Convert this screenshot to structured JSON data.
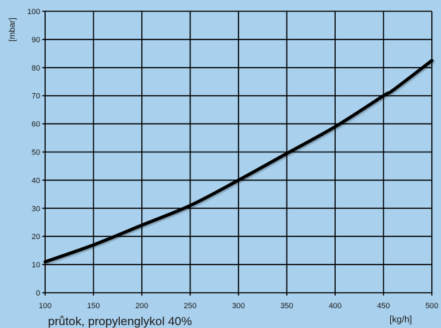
{
  "colors": {
    "background": "#a9d0ec",
    "grid": "#000000",
    "curve": "#000000"
  },
  "chart_data": {
    "type": "line",
    "title": "",
    "xlabel": "průtok, propylenglykol 40%",
    "xunit": "[kg/h]",
    "ylabel": "[mbar]",
    "xlim": [
      100,
      500
    ],
    "ylim": [
      0,
      100
    ],
    "xticks": [
      100,
      150,
      200,
      250,
      300,
      350,
      400,
      450,
      500
    ],
    "yticks": [
      0,
      10,
      20,
      30,
      40,
      50,
      60,
      70,
      80,
      90,
      100
    ],
    "grid": true,
    "series": [
      {
        "x": [
          100,
          150,
          200,
          250,
          300,
          350,
          400,
          450,
          460,
          500
        ],
        "y": [
          11,
          17,
          24,
          31,
          40,
          49.5,
          59,
          70,
          72,
          82.5
        ]
      }
    ]
  }
}
